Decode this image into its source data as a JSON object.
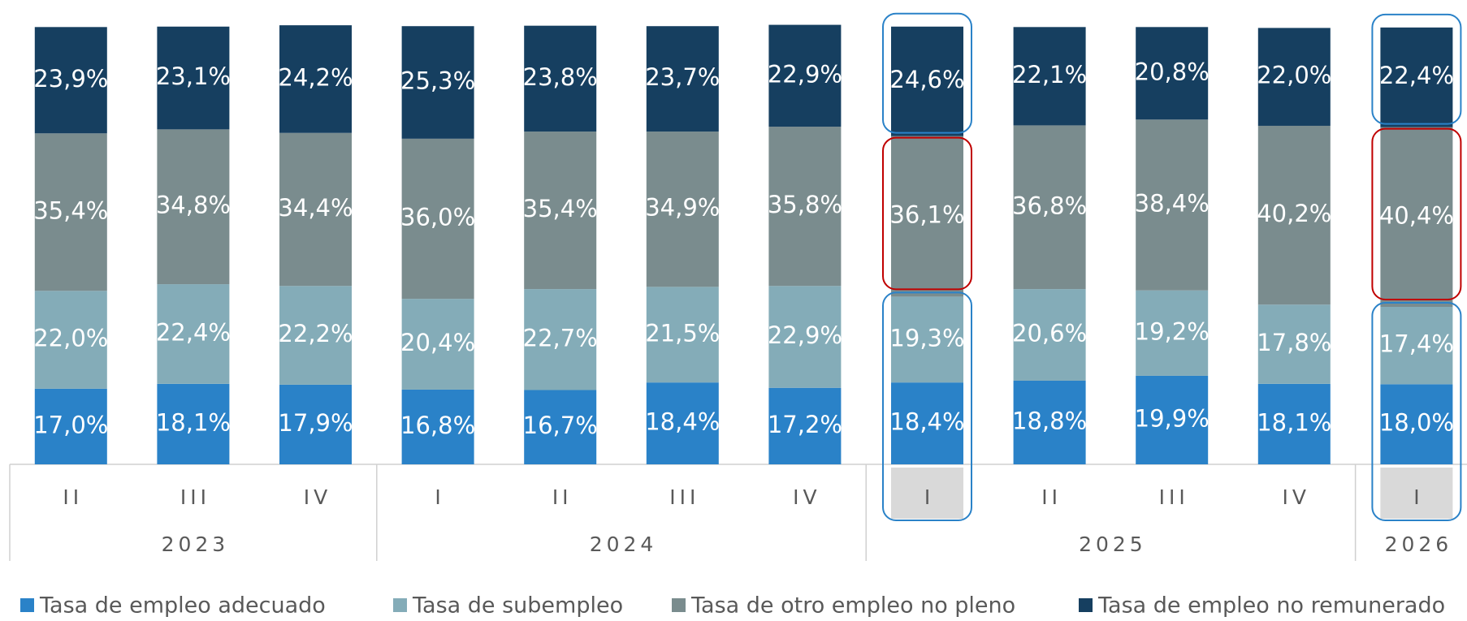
{
  "chart_data": {
    "type": "stacked_bar",
    "groups": [
      {
        "label": "2023",
        "categories": [
          "II",
          "III",
          "IV"
        ]
      },
      {
        "label": "2024",
        "categories": [
          "I",
          "II",
          "III",
          "IV"
        ]
      },
      {
        "label": "2025",
        "categories": [
          "I",
          "II",
          "III",
          "IV"
        ]
      },
      {
        "label": "2026",
        "categories": [
          "I"
        ]
      }
    ],
    "ylim": [
      0,
      100
    ],
    "series": [
      {
        "name": "Tasa de empleo adecuado",
        "color": "#2a82c8",
        "values": [
          17.0,
          18.1,
          17.9,
          16.8,
          16.7,
          18.4,
          17.2,
          18.4,
          18.8,
          19.9,
          18.1,
          18.0
        ],
        "value_labels": [
          "17,0%",
          "18,1%",
          "17,9%",
          "16,8%",
          "16,7%",
          "18,4%",
          "17,2%",
          "18,4%",
          "18,8%",
          "19,9%",
          "18,1%",
          "18,0%"
        ]
      },
      {
        "name": "Tasa de subempleo",
        "color": "#84acb8",
        "values": [
          22.0,
          22.4,
          22.2,
          20.4,
          22.7,
          21.5,
          22.9,
          19.3,
          20.6,
          19.2,
          17.8,
          17.4
        ],
        "value_labels": [
          "22,0%",
          "22,4%",
          "22,2%",
          "20,4%",
          "22,7%",
          "21,5%",
          "22,9%",
          "19,3%",
          "20,6%",
          "19,2%",
          "17,8%",
          "17,4%"
        ]
      },
      {
        "name": "Tasa de otro empleo no pleno",
        "color": "#7a8c8e",
        "values": [
          35.4,
          34.8,
          34.4,
          36.0,
          35.4,
          34.9,
          35.8,
          36.1,
          36.8,
          38.4,
          40.2,
          40.4
        ],
        "value_labels": [
          "35,4%",
          "34,8%",
          "34,4%",
          "36,0%",
          "35,4%",
          "34,9%",
          "35,8%",
          "36,1%",
          "36,8%",
          "38,4%",
          "40,2%",
          "40,4%"
        ]
      },
      {
        "name": "Tasa de empleo no remunerado",
        "color": "#163f60",
        "values": [
          23.9,
          23.1,
          24.2,
          25.3,
          23.8,
          23.7,
          22.9,
          24.6,
          22.1,
          20.8,
          22.0,
          22.4
        ],
        "value_labels": [
          "23,9%",
          "23,1%",
          "24,2%",
          "25,3%",
          "23,8%",
          "23,7%",
          "22,9%",
          "24,6%",
          "22,1%",
          "20,8%",
          "22,0%",
          "22,4%"
        ]
      }
    ]
  }
}
